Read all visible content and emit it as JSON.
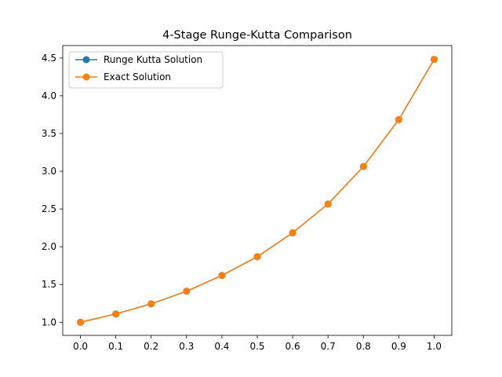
{
  "chart_data": {
    "type": "line",
    "title": "4-Stage Runge-Kutta Comparison",
    "xlabel": "",
    "ylabel": "",
    "x": [
      0.0,
      0.1,
      0.2,
      0.3,
      0.4,
      0.5,
      0.6,
      0.7,
      0.8,
      0.9,
      1.0
    ],
    "xlim": [
      -0.05,
      1.05
    ],
    "ylim": [
      0.8259,
      4.6649
    ],
    "xticks": [
      "0.0",
      "0.1",
      "0.2",
      "0.3",
      "0.4",
      "0.5",
      "0.6",
      "0.7",
      "0.8",
      "0.9",
      "1.0"
    ],
    "yticks": [
      "1.0",
      "1.5",
      "2.0",
      "2.5",
      "3.0",
      "3.5",
      "4.0",
      "4.5"
    ],
    "grid": false,
    "legend_position": "upper-left",
    "series": [
      {
        "name": "Runge Kutta Solution",
        "color": "#1f77b4",
        "marker": "circle",
        "values": [
          1.0,
          1.11,
          1.2436,
          1.4107,
          1.6198,
          1.8682,
          2.1847,
          2.5661,
          3.0625,
          3.6836,
          4.4817
        ]
      },
      {
        "name": "Exact Solution",
        "color": "#ff7f0e",
        "marker": "circle",
        "values": [
          1.0,
          1.11,
          1.2436,
          1.4107,
          1.6198,
          1.8682,
          2.1847,
          2.5661,
          3.0625,
          3.6836,
          4.4817
        ]
      }
    ]
  }
}
